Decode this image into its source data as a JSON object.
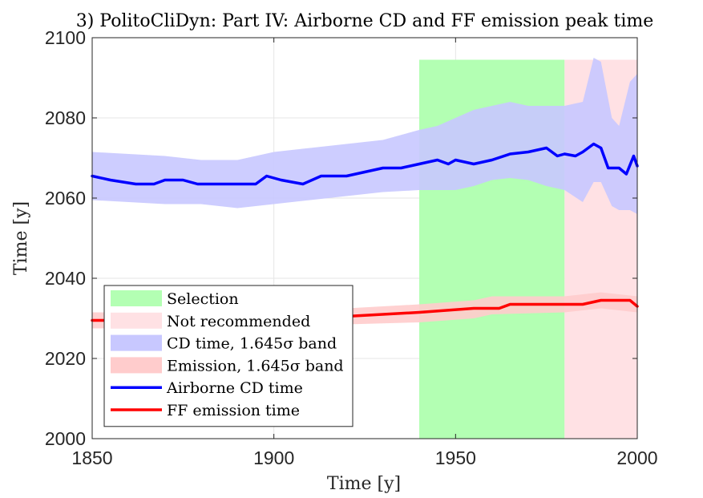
{
  "chart_data": {
    "type": "line",
    "title": "3) PolitoCliDyn: Part IV: Airborne CD and FF emission peak time",
    "xlabel": "Time [y]",
    "ylabel": "Time [y]",
    "xlim": [
      1850,
      2000
    ],
    "ylim": [
      2000,
      2100
    ],
    "xticks": [
      "1850",
      "1900",
      "1950",
      "2000"
    ],
    "yticks": [
      "2000",
      "2020",
      "2040",
      "2060",
      "2080",
      "2100"
    ],
    "grid": true,
    "legend_position": "bottom-left",
    "regions": [
      {
        "name": "Selection",
        "x_start": 1940,
        "x_end": 1980,
        "y_top": 2094.5,
        "color": "#b3ffb3"
      },
      {
        "name": "Not recommended",
        "x_start": 1980,
        "x_end": 2000,
        "y_top": 2094.5,
        "color": "#ffe1e4"
      }
    ],
    "series": [
      {
        "name": "CD time, 1.645σ band",
        "kind": "band",
        "color": "#c8c8ff",
        "x": [
          1850,
          1870,
          1880,
          1890,
          1900,
          1910,
          1920,
          1930,
          1940,
          1945,
          1950,
          1955,
          1960,
          1965,
          1970,
          1975,
          1980,
          1985,
          1988,
          1990,
          1993,
          1995,
          1998,
          2000
        ],
        "upper": [
          2071.5,
          2070.5,
          2069.5,
          2069.5,
          2071.5,
          2072.5,
          2073.5,
          2074.5,
          2077,
          2078,
          2080,
          2082,
          2083,
          2084,
          2083,
          2083,
          2083,
          2084,
          2095,
          2094,
          2080,
          2078,
          2089,
          2091
        ],
        "lower": [
          2059.5,
          2058.5,
          2058.5,
          2057.5,
          2058.5,
          2059.5,
          2060.5,
          2061.5,
          2062,
          2062,
          2062,
          2063,
          2064.5,
          2065,
          2064.5,
          2063,
          2062,
          2059,
          2064,
          2064,
          2058,
          2057,
          2057,
          2056
        ]
      },
      {
        "name": "Emission, 1.645σ band",
        "kind": "band",
        "color": "#ffcccc",
        "x": [
          1850,
          1900,
          1920,
          1940,
          1955,
          1960,
          1980,
          1990,
          2000
        ],
        "upper": [
          2031.5,
          2031.5,
          2032.5,
          2033.5,
          2034.5,
          2035.5,
          2035.5,
          2036.5,
          2035.5
        ],
        "lower": [
          2027.5,
          2027.5,
          2028.5,
          2029,
          2030,
          2031,
          2031.5,
          2032.5,
          2031.5
        ]
      },
      {
        "name": "Airborne CD time",
        "kind": "line",
        "color": "#0000ff",
        "x": [
          1850,
          1855,
          1862,
          1867,
          1870,
          1875,
          1879,
          1885,
          1895,
          1898,
          1902,
          1908,
          1913,
          1920,
          1925,
          1930,
          1935,
          1940,
          1945,
          1948,
          1950,
          1955,
          1960,
          1965,
          1970,
          1975,
          1978,
          1980,
          1983,
          1985,
          1988,
          1990,
          1992,
          1995,
          1997,
          1999,
          2000
        ],
        "y": [
          2065.5,
          2064.5,
          2063.5,
          2063.5,
          2064.5,
          2064.5,
          2063.5,
          2063.5,
          2063.5,
          2065.5,
          2064.5,
          2063.5,
          2065.5,
          2065.5,
          2066.5,
          2067.5,
          2067.5,
          2068.5,
          2069.5,
          2068.5,
          2069.5,
          2068.5,
          2069.5,
          2071,
          2071.5,
          2072.5,
          2070.5,
          2071,
          2070.5,
          2071.5,
          2073.5,
          2072.5,
          2067.5,
          2067.5,
          2066,
          2070.5,
          2068
        ]
      },
      {
        "name": "FF emission time",
        "kind": "line",
        "color": "#ff0000",
        "x": [
          1850,
          1900,
          1920,
          1940,
          1955,
          1962,
          1965,
          1980,
          1985,
          1990,
          1998,
          2000
        ],
        "y": [
          2029.5,
          2029.5,
          2030.5,
          2031.5,
          2032.5,
          2032.5,
          2033.5,
          2033.5,
          2033.5,
          2034.5,
          2034.5,
          2033
        ]
      }
    ]
  }
}
